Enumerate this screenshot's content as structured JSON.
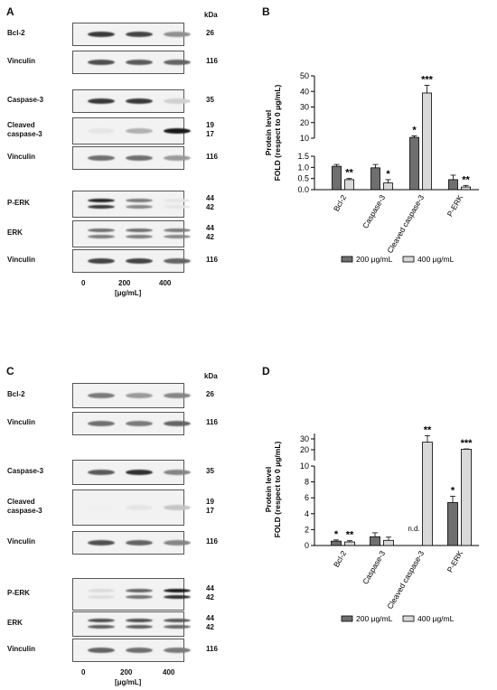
{
  "colors": {
    "dark_bar": "#6f6f6f",
    "light_bar": "#d9d9d9",
    "axis": "#000000"
  },
  "panels": {
    "A": {
      "letter": "A",
      "kda_header": "kDa",
      "lane_labels": [
        "0",
        "200",
        "400"
      ],
      "unit_label": "[μg/mL]",
      "blots": [
        {
          "label": "Bcl-2",
          "kda": [
            "26"
          ],
          "bands": [
            0.85,
            0.8,
            0.45
          ]
        },
        {
          "label": "Vinculin",
          "kda": [
            "116"
          ],
          "bands": [
            0.75,
            0.7,
            0.65
          ]
        },
        {
          "label": "Caspase-3",
          "kda": [
            "35"
          ],
          "bands": [
            0.85,
            0.85,
            0.15
          ]
        },
        {
          "label": "Cleaved\ncaspase-3",
          "kda": [
            "19",
            "17"
          ],
          "bands": [
            0.05,
            0.3,
            1.0
          ]
        },
        {
          "label": "Vinculin",
          "kda": [
            "116"
          ],
          "bands": [
            0.6,
            0.6,
            0.4
          ]
        },
        {
          "label": "P-ERK",
          "kda": [
            "44",
            "42"
          ],
          "bands": [
            0.95,
            0.55,
            0.05
          ]
        },
        {
          "label": "ERK",
          "kda": [
            "44",
            "42"
          ],
          "bands": [
            0.6,
            0.6,
            0.55
          ]
        },
        {
          "label": "Vinculin",
          "kda": [
            "116"
          ],
          "bands": [
            0.8,
            0.8,
            0.65
          ]
        }
      ]
    },
    "C": {
      "letter": "C",
      "kda_header": "kDa",
      "lane_labels": [
        "0",
        "200",
        "400"
      ],
      "unit_label": "[μg/mL]",
      "blots": [
        {
          "label": "Bcl-2",
          "kda": [
            "26"
          ],
          "bands": [
            0.55,
            0.4,
            0.5
          ]
        },
        {
          "label": "Vinculin",
          "kda": [
            "116"
          ],
          "bands": [
            0.6,
            0.55,
            0.65
          ]
        },
        {
          "label": "Caspase-3",
          "kda": [
            "35"
          ],
          "bands": [
            0.7,
            0.9,
            0.5
          ]
        },
        {
          "label": "Cleaved\ncaspase-3",
          "kda": [
            "19",
            "17"
          ],
          "bands": [
            0.0,
            0.05,
            0.2
          ]
        },
        {
          "label": "Vinculin",
          "kda": [
            "116"
          ],
          "bands": [
            0.75,
            0.65,
            0.5
          ]
        },
        {
          "label": "P-ERK",
          "kda": [
            "44",
            "42"
          ],
          "bands": [
            0.1,
            0.65,
            1.0
          ]
        },
        {
          "label": "ERK",
          "kda": [
            "44",
            "42"
          ],
          "bands": [
            0.75,
            0.75,
            0.7
          ]
        },
        {
          "label": "Vinculin",
          "kda": [
            "116"
          ],
          "bands": [
            0.65,
            0.6,
            0.55
          ]
        }
      ]
    },
    "B": {
      "letter": "B"
    },
    "D": {
      "letter": "D"
    }
  },
  "chart_data": [
    {
      "panel": "B",
      "type": "bar",
      "ylabel": "Protein level\nFOLD (respect to 0 μg/mL)",
      "categories": [
        "Bcl-2",
        "Caspase-3",
        "Cleaved caspase-3",
        "P-ERK"
      ],
      "axis_break": {
        "lower_range": [
          0,
          1.5
        ],
        "upper_range": [
          10,
          50
        ]
      },
      "yticks_lower": [
        "0.0",
        "0.5",
        "1.0",
        "1.5"
      ],
      "yticks_upper": [
        "10",
        "20",
        "30",
        "40",
        "50"
      ],
      "series": [
        {
          "name": "200 μg/mL",
          "values": [
            1.05,
            0.98,
            10.5,
            0.45
          ],
          "errors": [
            0.08,
            0.15,
            1.0,
            0.2
          ],
          "sig": [
            "",
            "",
            "*",
            ""
          ]
        },
        {
          "name": "400 μg/mL",
          "values": [
            0.45,
            0.3,
            39.0,
            0.12
          ],
          "errors": [
            0.05,
            0.15,
            5.0,
            0.07
          ],
          "sig": [
            "**",
            "*",
            "***",
            "**"
          ]
        }
      ],
      "legend_position": "bottom"
    },
    {
      "panel": "D",
      "type": "bar",
      "ylabel": "Protein level\nFOLD (respect to 0 μg/mL)",
      "categories": [
        "Bcl-2",
        "Caspase-3",
        "Cleaved caspase-3",
        "P-ERK"
      ],
      "axis_break": {
        "lower_range": [
          0,
          10
        ],
        "upper_range": [
          10,
          35
        ]
      },
      "yticks_lower": [
        "0",
        "2",
        "4",
        "6",
        "8",
        "10"
      ],
      "yticks_upper": [
        "20",
        "30"
      ],
      "series": [
        {
          "name": "200 μg/mL",
          "values": [
            0.55,
            1.1,
            0,
            5.4
          ],
          "errors": [
            0.15,
            0.5,
            0,
            0.8
          ],
          "sig": [
            "*",
            "",
            "n.d.",
            "*"
          ]
        },
        {
          "name": "400 μg/mL",
          "values": [
            0.45,
            0.65,
            27.0,
            20.5
          ],
          "errors": [
            0.15,
            0.4,
            6.0,
            0.3
          ],
          "sig": [
            "**",
            "",
            "**",
            "***"
          ]
        }
      ],
      "legend_position": "bottom"
    }
  ]
}
